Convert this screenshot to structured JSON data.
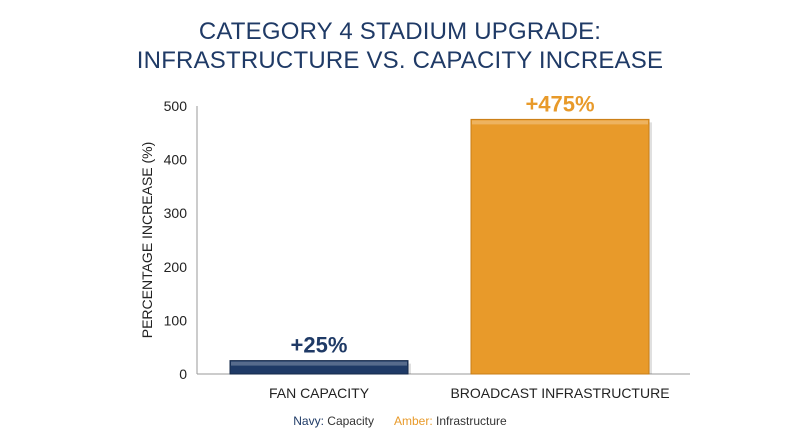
{
  "chart_data": {
    "type": "bar",
    "title_lines": [
      "CATEGORY 4 STADIUM UPGRADE:",
      "INFRASTRUCTURE VS. CAPACITY INCREASE"
    ],
    "ylabel": "PERCENTAGE INCREASE (%)",
    "xlabel": "",
    "ylim": [
      0,
      500
    ],
    "yticks": [
      0,
      100,
      200,
      300,
      400,
      500
    ],
    "categories": [
      "FAN CAPACITY",
      "BROADCAST INFRASTRUCTURE"
    ],
    "values": [
      25,
      475
    ],
    "data_labels": [
      "+25%",
      "+475%"
    ],
    "colors": [
      "#1f3a66",
      "#e89a2a"
    ],
    "grid": false
  },
  "legend": {
    "navy_key": "Navy:",
    "navy_label": "Capacity",
    "amber_key": "Amber:",
    "amber_label": "Infrastructure"
  }
}
